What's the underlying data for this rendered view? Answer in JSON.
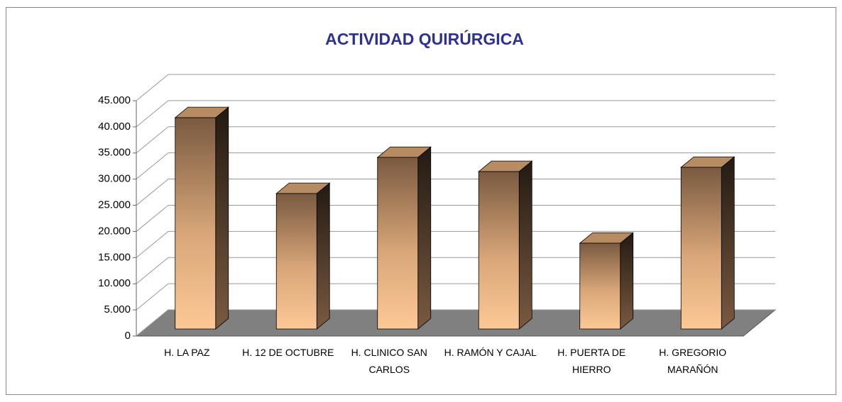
{
  "chart_data": {
    "type": "bar3d",
    "title": "ACTIVIDAD QUIRÚRGICA",
    "categories": [
      "H. LA PAZ",
      "H. 12 DE OCTUBRE",
      "H. CLINICO SAN CARLOS",
      "H. RAMÓN Y CAJAL",
      "H. PUERTA DE HIERRO",
      "H. GREGORIO MARAÑÓN"
    ],
    "values": [
      40400,
      25900,
      32800,
      30100,
      16400,
      30900
    ],
    "color": "#fdc896",
    "ylim": [
      0,
      45000
    ],
    "yticks": [
      0,
      {
        "value": 5000,
        "label": "5.000"
      },
      {
        "value": 10000,
        "label": "10.000"
      },
      {
        "value": 15000,
        "label": "15.000"
      },
      {
        "value": 20000,
        "label": "20.000"
      },
      {
        "value": 25000,
        "label": "25.000"
      },
      {
        "value": 30000,
        "label": "30.000"
      },
      {
        "value": 35000,
        "label": "35.000"
      },
      {
        "value": 40000,
        "label": "40.000"
      },
      {
        "value": 45000,
        "label": "45.000"
      }
    ],
    "grid": true
  }
}
